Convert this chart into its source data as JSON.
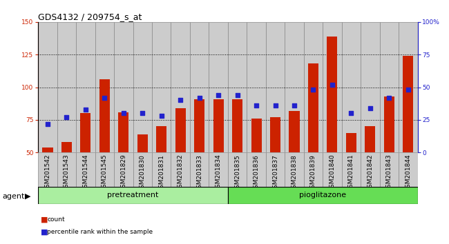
{
  "title": "GDS4132 / 209754_s_at",
  "samples": [
    "GSM201542",
    "GSM201543",
    "GSM201544",
    "GSM201545",
    "GSM201829",
    "GSM201830",
    "GSM201831",
    "GSM201832",
    "GSM201833",
    "GSM201834",
    "GSM201835",
    "GSM201836",
    "GSM201837",
    "GSM201838",
    "GSM201839",
    "GSM201840",
    "GSM201841",
    "GSM201842",
    "GSM201843",
    "GSM201844"
  ],
  "count_values": [
    54,
    58,
    80,
    106,
    81,
    64,
    70,
    84,
    91,
    91,
    91,
    76,
    77,
    82,
    118,
    139,
    65,
    70,
    93,
    124
  ],
  "percentile_values": [
    22,
    27,
    33,
    42,
    30,
    30,
    28,
    40,
    42,
    44,
    44,
    36,
    36,
    36,
    48,
    52,
    30,
    34,
    42,
    48
  ],
  "pretreatment_count": 10,
  "pioglitazone_count": 10,
  "bar_color": "#cc2200",
  "dot_color": "#2222cc",
  "pretreatment_color": "#aaeea0",
  "pioglitazone_color": "#66dd55",
  "bg_color": "#ffffff",
  "col_bg_color": "#cccccc",
  "ymin": 50,
  "ymax": 150,
  "yticks": [
    50,
    75,
    100,
    125,
    150
  ],
  "y2min": 0,
  "y2max": 100,
  "y2ticks": [
    0,
    25,
    50,
    75,
    100
  ],
  "y2ticklabels": [
    "0",
    "25",
    "50",
    "75",
    "100%"
  ],
  "title_fontsize": 9,
  "tick_fontsize": 6.5,
  "label_fontsize": 8,
  "bar_width": 0.55,
  "dot_size": 20
}
